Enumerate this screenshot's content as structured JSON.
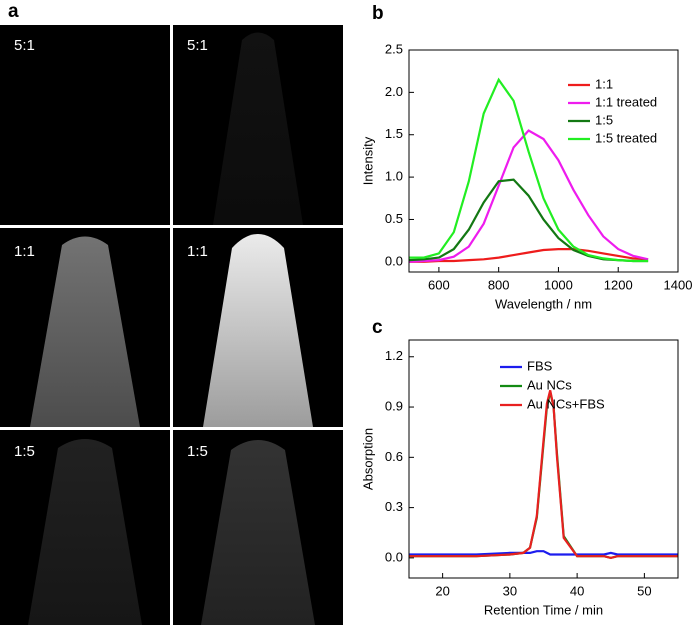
{
  "panel_a": {
    "label": "a",
    "images": [
      "5:1",
      "5:1",
      "1:1",
      "1:1",
      "1:5",
      "1:5"
    ]
  },
  "chart_data": [
    {
      "type": "line",
      "panel_label": "b",
      "x_label": "Wavelength / nm",
      "y_label": "Intensity",
      "x": [
        500,
        550,
        600,
        650,
        700,
        750,
        800,
        850,
        900,
        950,
        1000,
        1050,
        1100,
        1150,
        1200,
        1250,
        1300
      ],
      "xlim": [
        500,
        1400
      ],
      "xticks": [
        600,
        800,
        1000,
        1200,
        1400
      ],
      "ylim": [
        -0.12,
        2.5
      ],
      "yticks": [
        {
          "value": 0,
          "label": "0.0"
        },
        {
          "value": 0.5,
          "label": "0.5"
        },
        {
          "value": 1,
          "label": "1.0"
        },
        {
          "value": 1.5,
          "label": "1.5"
        },
        {
          "value": 2,
          "label": "2.0"
        },
        {
          "value": 2.5,
          "label": "2.5"
        }
      ],
      "legend": "upper right",
      "series": [
        {
          "name": "1:1",
          "color": "#ee1c1c",
          "values": [
            0.0,
            0.0,
            0.01,
            0.01,
            0.02,
            0.03,
            0.05,
            0.08,
            0.11,
            0.14,
            0.15,
            0.15,
            0.13,
            0.1,
            0.07,
            0.04,
            0.03
          ]
        },
        {
          "name": "1:1 treated",
          "color": "#ee1cee",
          "values": [
            0.0,
            0.01,
            0.02,
            0.06,
            0.18,
            0.45,
            0.9,
            1.35,
            1.55,
            1.45,
            1.2,
            0.85,
            0.55,
            0.3,
            0.15,
            0.07,
            0.03
          ]
        },
        {
          "name": "1:5",
          "color": "#137813",
          "values": [
            0.02,
            0.03,
            0.05,
            0.15,
            0.38,
            0.7,
            0.95,
            0.97,
            0.78,
            0.5,
            0.28,
            0.14,
            0.07,
            0.03,
            0.02,
            0.01,
            0.01
          ]
        },
        {
          "name": "1:5 treated",
          "color": "#22ee22",
          "values": [
            0.05,
            0.05,
            0.1,
            0.35,
            0.95,
            1.75,
            2.15,
            1.9,
            1.3,
            0.75,
            0.38,
            0.18,
            0.08,
            0.04,
            0.02,
            0.01,
            0.01
          ]
        }
      ]
    },
    {
      "type": "line",
      "panel_label": "c",
      "x_label": "Retention Time / min",
      "y_label": "Absorption",
      "x": [
        15,
        20,
        25,
        30,
        32,
        33,
        34,
        35,
        35.5,
        36,
        36.5,
        37,
        38,
        40,
        44,
        45,
        46,
        50,
        55
      ],
      "xlim": [
        15,
        55
      ],
      "xticks": [
        20,
        30,
        40,
        50
      ],
      "ylim": [
        -0.12,
        1.3
      ],
      "yticks": [
        {
          "value": 0,
          "label": "0.0"
        },
        {
          "value": 0.3,
          "label": "0.3"
        },
        {
          "value": 0.6,
          "label": "0.6"
        },
        {
          "value": 0.9,
          "label": "0.9"
        },
        {
          "value": 1.2,
          "label": "1.2"
        }
      ],
      "legend": "upper center",
      "series": [
        {
          "name": "FBS",
          "color": "#1c1cee",
          "values": [
            0.02,
            0.02,
            0.02,
            0.03,
            0.03,
            0.03,
            0.04,
            0.04,
            0.03,
            0.02,
            0.02,
            0.02,
            0.02,
            0.02,
            0.02,
            0.03,
            0.02,
            0.02,
            0.02
          ]
        },
        {
          "name": "Au NCs",
          "color": "#138a13",
          "values": [
            0.01,
            0.01,
            0.01,
            0.02,
            0.03,
            0.06,
            0.24,
            0.68,
            0.9,
            0.99,
            0.9,
            0.62,
            0.13,
            0.01,
            0.01,
            0.0,
            0.01,
            0.01,
            0.01
          ]
        },
        {
          "name": "Au NCs+FBS",
          "color": "#e82020",
          "values": [
            0.01,
            0.01,
            0.01,
            0.02,
            0.03,
            0.06,
            0.25,
            0.7,
            0.92,
            1.0,
            0.9,
            0.6,
            0.12,
            0.01,
            0.01,
            0.0,
            0.01,
            0.01,
            0.01
          ]
        }
      ]
    }
  ]
}
